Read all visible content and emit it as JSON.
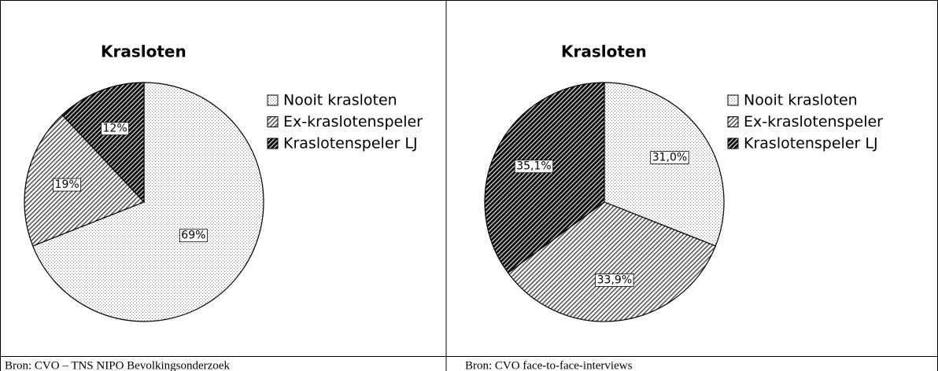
{
  "chart_data": [
    {
      "type": "pie",
      "title": "Krasloten",
      "categories": [
        "Nooit krasloten",
        "Ex-kraslotenspeler",
        "Kraslotenspeler LJ"
      ],
      "values": [
        69,
        19,
        12
      ],
      "value_labels": [
        "69%",
        "19%",
        "12%"
      ],
      "source": "Bron: CVO – TNS NIPO Bevolkingsonderzoek"
    },
    {
      "type": "pie",
      "title": "Krasloten",
      "categories": [
        "Nooit krasloten",
        "Ex-kraslotenspeler",
        "Kraslotenspeler LJ"
      ],
      "values": [
        31.0,
        33.9,
        35.1
      ],
      "value_labels": [
        "31,0%",
        "33,9%",
        "35,1%"
      ],
      "source": "Bron: CVO face-to-face-interviews"
    }
  ]
}
